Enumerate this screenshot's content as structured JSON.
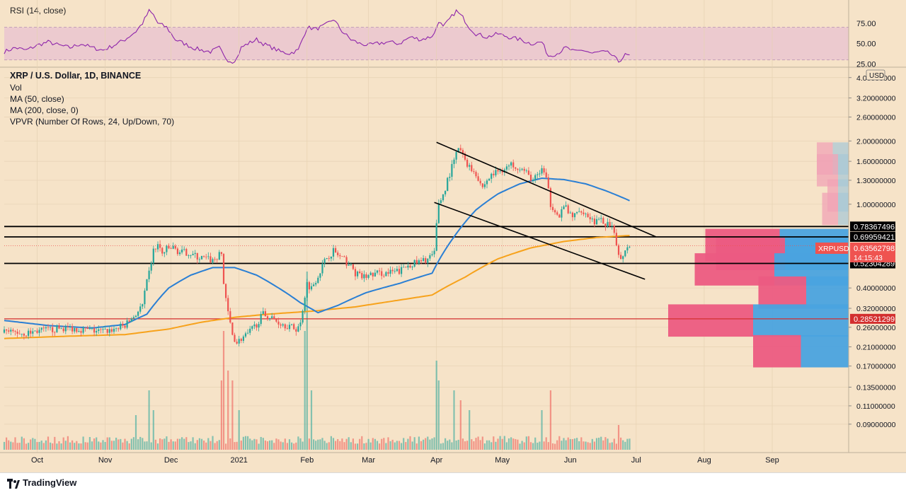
{
  "rsi": {
    "label": "RSI (14, close)",
    "ticks": [
      "75.00",
      "50.00",
      "25.00"
    ],
    "tick_values": [
      75,
      50,
      25
    ],
    "band": [
      30,
      70
    ],
    "ylim": [
      22,
      100
    ]
  },
  "legend": {
    "line1": "XRP / U.S. Dollar, 1D, BINANCE",
    "line2": "Vol",
    "line3": "MA (50, close)",
    "line4": "MA (200, close, 0)",
    "line5": "VPVR (Number Of Rows, 24, Up/Down, 70)"
  },
  "currency_button": "USD",
  "price_axis": {
    "scale": "log",
    "ylim": [
      0.077,
      4.15
    ],
    "ticks": [
      {
        "label": "4.00000000",
        "value": 4.0
      },
      {
        "label": "3.20000000",
        "value": 3.2
      },
      {
        "label": "2.60000000",
        "value": 2.6
      },
      {
        "label": "2.00000000",
        "value": 2.0
      },
      {
        "label": "1.60000000",
        "value": 1.6
      },
      {
        "label": "1.30000000",
        "value": 1.3
      },
      {
        "label": "1.00000000",
        "value": 1.0
      },
      {
        "label": "0.40000000",
        "value": 0.4
      },
      {
        "label": "0.32000000",
        "value": 0.32
      },
      {
        "label": "0.26000000",
        "value": 0.26
      },
      {
        "label": "0.21000000",
        "value": 0.21
      },
      {
        "label": "0.17000000",
        "value": 0.17
      },
      {
        "label": "0.13500000",
        "value": 0.135
      },
      {
        "label": "0.11000000",
        "value": 0.11
      },
      {
        "label": "0.09000000",
        "value": 0.09
      }
    ]
  },
  "time_axis": {
    "ticks": [
      {
        "label": "Oct",
        "day": 15
      },
      {
        "label": "Nov",
        "day": 46
      },
      {
        "label": "Dec",
        "day": 76
      },
      {
        "label": "2021",
        "day": 107
      },
      {
        "label": "Feb",
        "day": 138
      },
      {
        "label": "Mar",
        "day": 166
      },
      {
        "label": "Apr",
        "day": 197
      },
      {
        "label": "May",
        "day": 227
      },
      {
        "label": "Jun",
        "day": 258
      },
      {
        "label": "Jul",
        "day": 288
      },
      {
        "label": "Aug",
        "day": 319
      },
      {
        "label": "Sep",
        "day": 350
      }
    ]
  },
  "price_levels": [
    {
      "label": "0.78367496",
      "value": 0.78367496,
      "color": "#000000"
    },
    {
      "label": "0.69959421",
      "value": 0.69959421,
      "color": "#000000"
    },
    {
      "label": "0.52304289",
      "value": 0.52304289,
      "color": "#000000"
    },
    {
      "label": "0.28521299",
      "value": 0.28521299,
      "color": "#d32f2f"
    }
  ],
  "current_price": {
    "symbol": "XRPUSD",
    "price": "0.63562798",
    "value": 0.63562798,
    "countdown": "14:15:43",
    "color": "#ef5350"
  },
  "channel_lines": [
    {
      "name": "upper",
      "start": [
        197,
        1.97
      ],
      "end": [
        297,
        0.7
      ]
    },
    {
      "name": "lower",
      "start": [
        196,
        1.02
      ],
      "end": [
        292,
        0.44
      ]
    }
  ],
  "colors": {
    "background": "#f6e3c8",
    "up": "#26a69a",
    "down": "#ef5350",
    "ma50": "#2a7fd4",
    "ma200": "#f7a21b",
    "rsi": "#8e24aa",
    "rsi_band": "#eac6d0",
    "vpvr_up": "#4aa3df",
    "vpvr_down": "#ec5b82"
  },
  "chart_data": {
    "type": "candlestick",
    "symbol": "XRP / U.S. Dollar",
    "interval": "1D",
    "exchange": "BINANCE",
    "series_points": {
      "close": [
        [
          0,
          0.245
        ],
        [
          5,
          0.246
        ],
        [
          10,
          0.243
        ],
        [
          15,
          0.25
        ],
        [
          20,
          0.252
        ],
        [
          25,
          0.257
        ],
        [
          30,
          0.258
        ],
        [
          35,
          0.255
        ],
        [
          40,
          0.251
        ],
        [
          45,
          0.248
        ],
        [
          50,
          0.255
        ],
        [
          55,
          0.265
        ],
        [
          60,
          0.3
        ],
        [
          63,
          0.33
        ],
        [
          66,
          0.47
        ],
        [
          68,
          0.6
        ],
        [
          70,
          0.64
        ],
        [
          72,
          0.58
        ],
        [
          74,
          0.61
        ],
        [
          77,
          0.62
        ],
        [
          80,
          0.59
        ],
        [
          84,
          0.59
        ],
        [
          88,
          0.56
        ],
        [
          92,
          0.55
        ],
        [
          95,
          0.54
        ],
        [
          99,
          0.58
        ],
        [
          100,
          0.42
        ],
        [
          102,
          0.3
        ],
        [
          104,
          0.24
        ],
        [
          106,
          0.22
        ],
        [
          108,
          0.23
        ],
        [
          111,
          0.24
        ],
        [
          115,
          0.27
        ],
        [
          118,
          0.3
        ],
        [
          121,
          0.29
        ],
        [
          125,
          0.275
        ],
        [
          129,
          0.265
        ],
        [
          133,
          0.255
        ],
        [
          135,
          0.27
        ],
        [
          138,
          0.42
        ],
        [
          140,
          0.4
        ],
        [
          143,
          0.46
        ],
        [
          147,
          0.56
        ],
        [
          150,
          0.6
        ],
        [
          153,
          0.56
        ],
        [
          157,
          0.52
        ],
        [
          160,
          0.47
        ],
        [
          163,
          0.45
        ],
        [
          167,
          0.46
        ],
        [
          170,
          0.47
        ],
        [
          175,
          0.47
        ],
        [
          180,
          0.48
        ],
        [
          185,
          0.52
        ],
        [
          190,
          0.53
        ],
        [
          194,
          0.56
        ],
        [
          196,
          0.58
        ],
        [
          197,
          0.8
        ],
        [
          198,
          1.02
        ],
        [
          200,
          1.1
        ],
        [
          202,
          1.3
        ],
        [
          205,
          1.6
        ],
        [
          207,
          1.85
        ],
        [
          209,
          1.7
        ],
        [
          212,
          1.5
        ],
        [
          215,
          1.4
        ],
        [
          218,
          1.2
        ],
        [
          220,
          1.3
        ],
        [
          223,
          1.4
        ],
        [
          226,
          1.45
        ],
        [
          229,
          1.5
        ],
        [
          232,
          1.55
        ],
        [
          235,
          1.5
        ],
        [
          238,
          1.4
        ],
        [
          241,
          1.3
        ],
        [
          244,
          1.4
        ],
        [
          245,
          1.5
        ],
        [
          247,
          1.3
        ],
        [
          249,
          1.0
        ],
        [
          251,
          0.95
        ],
        [
          253,
          0.85
        ],
        [
          255,
          1.0
        ],
        [
          257,
          0.9
        ],
        [
          260,
          0.88
        ],
        [
          263,
          0.95
        ],
        [
          266,
          0.88
        ],
        [
          269,
          0.83
        ],
        [
          272,
          0.83
        ],
        [
          275,
          0.8
        ],
        [
          277,
          0.76
        ],
        [
          279,
          0.65
        ],
        [
          281,
          0.54
        ],
        [
          283,
          0.62
        ],
        [
          285,
          0.64
        ]
      ],
      "ma50": [
        [
          0,
          0.28
        ],
        [
          20,
          0.265
        ],
        [
          40,
          0.258
        ],
        [
          55,
          0.268
        ],
        [
          65,
          0.3
        ],
        [
          75,
          0.4
        ],
        [
          85,
          0.46
        ],
        [
          95,
          0.5
        ],
        [
          105,
          0.5
        ],
        [
          115,
          0.46
        ],
        [
          125,
          0.4
        ],
        [
          135,
          0.34
        ],
        [
          143,
          0.305
        ],
        [
          152,
          0.33
        ],
        [
          165,
          0.38
        ],
        [
          180,
          0.42
        ],
        [
          195,
          0.47
        ],
        [
          205,
          0.7
        ],
        [
          215,
          0.94
        ],
        [
          225,
          1.12
        ],
        [
          235,
          1.25
        ],
        [
          245,
          1.33
        ],
        [
          255,
          1.31
        ],
        [
          265,
          1.25
        ],
        [
          275,
          1.15
        ],
        [
          285,
          1.04
        ]
      ],
      "ma200": [
        [
          0,
          0.23
        ],
        [
          30,
          0.236
        ],
        [
          55,
          0.24
        ],
        [
          75,
          0.255
        ],
        [
          90,
          0.275
        ],
        [
          105,
          0.29
        ],
        [
          120,
          0.3
        ],
        [
          140,
          0.31
        ],
        [
          160,
          0.325
        ],
        [
          180,
          0.35
        ],
        [
          195,
          0.37
        ],
        [
          210,
          0.45
        ],
        [
          225,
          0.55
        ],
        [
          240,
          0.62
        ],
        [
          255,
          0.665
        ],
        [
          270,
          0.695
        ],
        [
          285,
          0.71
        ]
      ],
      "rsi": [
        [
          0,
          40
        ],
        [
          5,
          45
        ],
        [
          10,
          42
        ],
        [
          15,
          48
        ],
        [
          20,
          52
        ],
        [
          25,
          48
        ],
        [
          30,
          45
        ],
        [
          35,
          50
        ],
        [
          40,
          45
        ],
        [
          45,
          42
        ],
        [
          50,
          48
        ],
        [
          55,
          55
        ],
        [
          60,
          65
        ],
        [
          63,
          75
        ],
        [
          66,
          90
        ],
        [
          68,
          85
        ],
        [
          70,
          75
        ],
        [
          74,
          70
        ],
        [
          78,
          55
        ],
        [
          82,
          50
        ],
        [
          86,
          45
        ],
        [
          90,
          42
        ],
        [
          94,
          40
        ],
        [
          98,
          45
        ],
        [
          100,
          35
        ],
        [
          102,
          30
        ],
        [
          104,
          28
        ],
        [
          106,
          32
        ],
        [
          108,
          45
        ],
        [
          111,
          50
        ],
        [
          115,
          55
        ],
        [
          118,
          50
        ],
        [
          122,
          45
        ],
        [
          126,
          40
        ],
        [
          130,
          38
        ],
        [
          134,
          42
        ],
        [
          138,
          70
        ],
        [
          142,
          68
        ],
        [
          146,
          72
        ],
        [
          150,
          80
        ],
        [
          154,
          65
        ],
        [
          158,
          55
        ],
        [
          162,
          50
        ],
        [
          166,
          48
        ],
        [
          170,
          50
        ],
        [
          175,
          52
        ],
        [
          180,
          50
        ],
        [
          185,
          58
        ],
        [
          190,
          55
        ],
        [
          194,
          58
        ],
        [
          196,
          62
        ],
        [
          198,
          78
        ],
        [
          200,
          70
        ],
        [
          203,
          80
        ],
        [
          206,
          90
        ],
        [
          209,
          82
        ],
        [
          212,
          70
        ],
        [
          215,
          62
        ],
        [
          220,
          58
        ],
        [
          225,
          62
        ],
        [
          230,
          58
        ],
        [
          235,
          55
        ],
        [
          240,
          50
        ],
        [
          245,
          52
        ],
        [
          248,
          35
        ],
        [
          252,
          38
        ],
        [
          256,
          45
        ],
        [
          260,
          40
        ],
        [
          264,
          42
        ],
        [
          268,
          38
        ],
        [
          272,
          40
        ],
        [
          276,
          38
        ],
        [
          280,
          28
        ],
        [
          283,
          36
        ],
        [
          285,
          35
        ]
      ]
    },
    "volume_spikes": [
      [
        60,
        3.5
      ],
      [
        66,
        6
      ],
      [
        68,
        4
      ],
      [
        99,
        7
      ],
      [
        100,
        12
      ],
      [
        102,
        8
      ],
      [
        104,
        7
      ],
      [
        107,
        4
      ],
      [
        137,
        12
      ],
      [
        138,
        18
      ],
      [
        140,
        6
      ],
      [
        197,
        9
      ],
      [
        198,
        7
      ],
      [
        205,
        6
      ],
      [
        208,
        5
      ],
      [
        212,
        4
      ],
      [
        245,
        4
      ],
      [
        249,
        6
      ],
      [
        280,
        2.5
      ]
    ],
    "vpvr_rows": [
      {
        "price": 0.64,
        "up": 13,
        "down": 14
      },
      {
        "price": 0.58,
        "up": 12,
        "down": 13
      },
      {
        "price": 0.49,
        "up": 14,
        "down": 15
      },
      {
        "price": 0.38,
        "up": 8,
        "down": 9
      },
      {
        "price": 0.28,
        "up": 18,
        "down": 16
      },
      {
        "price": 0.2,
        "up": 9,
        "down": 9
      },
      {
        "price": 1.65,
        "up": 3,
        "down": 3
      },
      {
        "price": 1.45,
        "up": 2,
        "down": 4
      },
      {
        "price": 1.1,
        "up": 2,
        "down": 2
      },
      {
        "price": 0.95,
        "up": 2,
        "down": 3
      }
    ]
  }
}
